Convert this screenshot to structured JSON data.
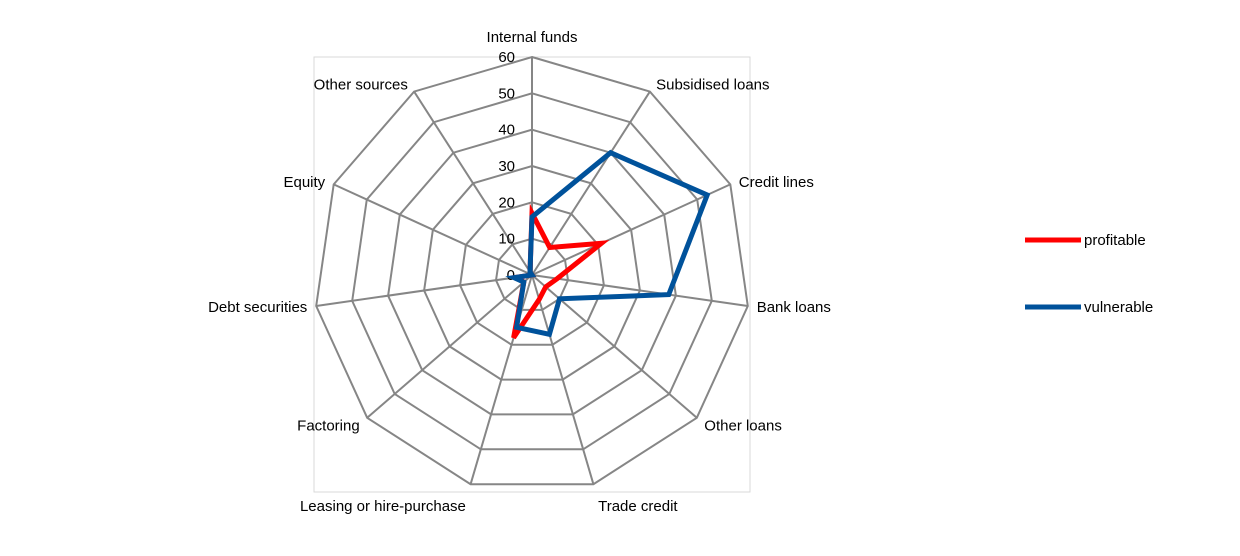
{
  "chart_data": {
    "type": "radar",
    "title": "",
    "categories": [
      "Internal funds",
      "Subsidised loans",
      "Credit lines",
      "Bank loans",
      "Other loans",
      "Trade credit",
      "Leasing or hire-purchase",
      "Factoring",
      "Debt securities",
      "Equity",
      "Other sources"
    ],
    "radial_ticks": [
      "0",
      "10",
      "20",
      "30",
      "40",
      "50",
      "60"
    ],
    "rlim": [
      0,
      60
    ],
    "grid": true,
    "legend": {
      "position": "right"
    },
    "series": [
      {
        "name": "profitable",
        "color": "#ff0000",
        "values": [
          17,
          9,
          21,
          7,
          5,
          7,
          18,
          3,
          4,
          0,
          1
        ]
      },
      {
        "name": "vulnerable",
        "color": "#00529b",
        "values": [
          16,
          40,
          53,
          38,
          10,
          17,
          15,
          3,
          5,
          0,
          1
        ]
      }
    ]
  }
}
